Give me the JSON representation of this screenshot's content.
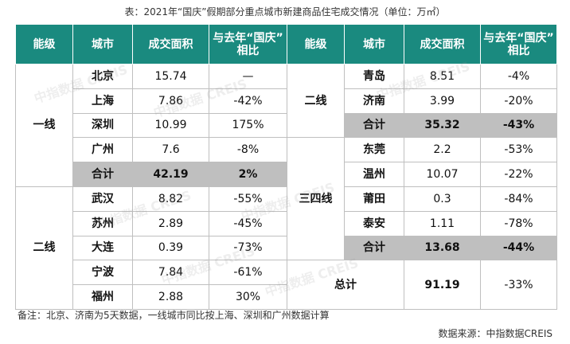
{
  "title": "表：2021年“国庆”假期部分重点城市新建商品住宅成交情况（单位：万㎡）",
  "headers": {
    "level": "能级",
    "city": "城市",
    "area": "成交面积",
    "yoy": "与去年“国庆”\n相比"
  },
  "left": {
    "tier1_label": "一线",
    "tier1_rows": [
      {
        "city": "北京",
        "area": "15.74",
        "yoy": "—"
      },
      {
        "city": "上海",
        "area": "7.86",
        "yoy": "-42%"
      },
      {
        "city": "深圳",
        "area": "10.99",
        "yoy": "175%"
      },
      {
        "city": "广州",
        "area": "7.6",
        "yoy": "-8%"
      }
    ],
    "tier1_sum": {
      "city": "合计",
      "area": "42.19",
      "yoy": "2%"
    },
    "tier2_label": "二线",
    "tier2_rows": [
      {
        "city": "武汉",
        "area": "8.82",
        "yoy": "-55%"
      },
      {
        "city": "苏州",
        "area": "2.89",
        "yoy": "-45%"
      },
      {
        "city": "大连",
        "area": "0.39",
        "yoy": "-73%"
      },
      {
        "city": "宁波",
        "area": "7.84",
        "yoy": "-61%"
      },
      {
        "city": "福州",
        "area": "2.88",
        "yoy": "30%"
      }
    ]
  },
  "right": {
    "tier2_label": "二线",
    "tier2_rows": [
      {
        "city": "青岛",
        "area": "8.51",
        "yoy": "-4%"
      },
      {
        "city": "济南",
        "area": "3.99",
        "yoy": "-20%"
      }
    ],
    "tier2_sum": {
      "city": "合计",
      "area": "35.32",
      "yoy": "-43%"
    },
    "tier34_label": "三四线",
    "tier34_rows": [
      {
        "city": "东莞",
        "area": "2.2",
        "yoy": "-53%"
      },
      {
        "city": "温州",
        "area": "10.07",
        "yoy": "-22%"
      },
      {
        "city": "莆田",
        "area": "0.3",
        "yoy": "-84%"
      },
      {
        "city": "泰安",
        "area": "1.11",
        "yoy": "-78%"
      }
    ],
    "tier34_sum": {
      "city": "合计",
      "area": "13.68",
      "yoy": "-44%"
    },
    "total": {
      "label": "总计",
      "area": "91.19",
      "yoy": "-33%"
    }
  },
  "watermark": "中指数据 CREIS",
  "note": "备注：北京、济南为5天数据，一线城市同比按上海、深圳和广州数据计算",
  "source": "数据来源：中指数据CREIS"
}
